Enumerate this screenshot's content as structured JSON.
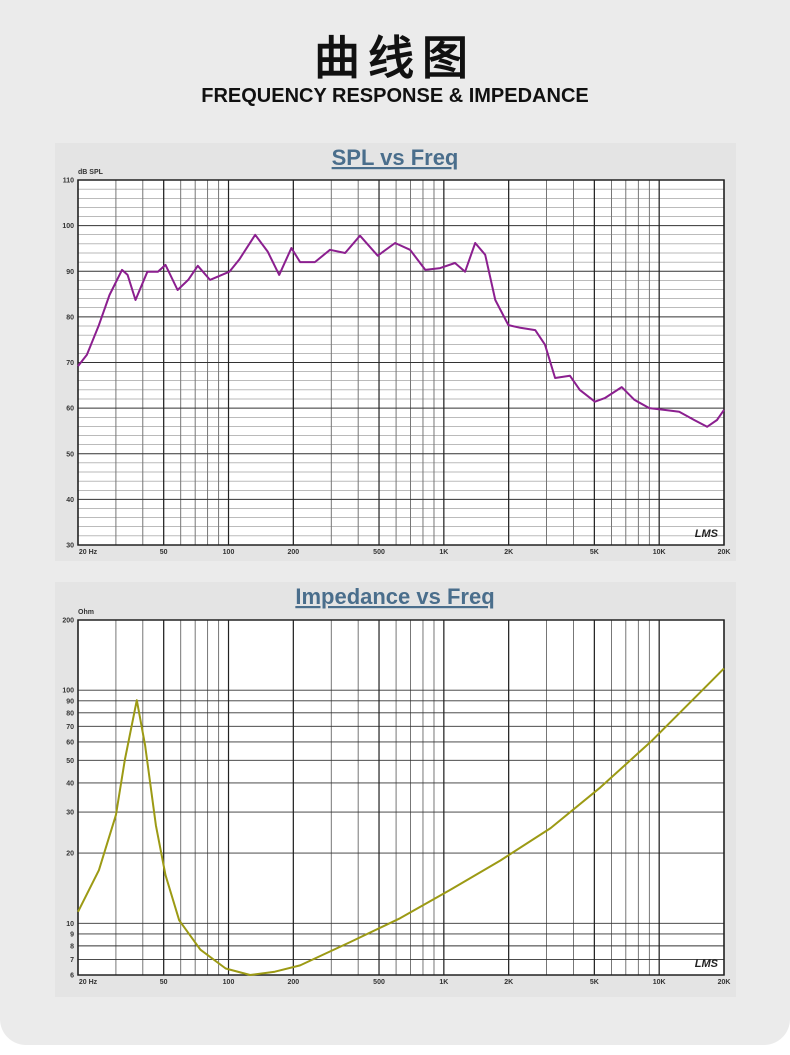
{
  "header": {
    "title": "曲线图",
    "subtitle": "FREQUENCY RESPONSE & IMPEDANCE"
  },
  "chart_data": [
    {
      "type": "line",
      "title": "SPL vs Freq",
      "y_label": "dB SPL",
      "annotation": "LMS",
      "xlog": true,
      "ylog": false,
      "grid": true,
      "minor_grid": true,
      "y_minor": 5,
      "xlim": [
        20,
        20000
      ],
      "ylim": [
        30,
        110
      ],
      "xticks": [
        {
          "value": 20,
          "label": "20 Hz"
        },
        50,
        100,
        200,
        500,
        {
          "value": 1000,
          "label": "1K"
        },
        {
          "value": 2000,
          "label": "2K"
        },
        {
          "value": 5000,
          "label": "5K"
        },
        {
          "value": 10000,
          "label": "10K"
        },
        {
          "value": 20000,
          "label": "20K"
        }
      ],
      "yticks": [
        30,
        40,
        50,
        60,
        70,
        80,
        90,
        100,
        110
      ],
      "x": [
        20,
        22,
        25,
        28,
        32,
        34,
        37,
        42,
        47,
        51,
        58,
        65,
        72,
        82,
        101,
        112,
        133,
        152,
        172,
        196,
        215,
        252,
        296,
        348,
        408,
        493,
        594,
        697,
        820,
        961,
        1127,
        1255,
        1398,
        1556,
        1733,
        1994,
        2265,
        2657,
        2950,
        3285,
        3850,
        4280,
        5030,
        5590,
        6700,
        7680,
        9000,
        10560,
        12390,
        14550,
        16700,
        18550,
        20000
      ],
      "series": [
        {
          "name": "SPL",
          "color": "#8b1f8f",
          "values": [
            69.2,
            71.7,
            78.2,
            84.8,
            90.3,
            89.2,
            83.7,
            89.9,
            89.9,
            91.4,
            85.9,
            88.1,
            91.2,
            88.1,
            89.9,
            92.5,
            98,
            94.3,
            89.2,
            95.1,
            92,
            92,
            94.7,
            94,
            97.8,
            93.4,
            96.2,
            94.7,
            90.3,
            90.7,
            91.8,
            89.9,
            96.2,
            93.6,
            83.7,
            78.2,
            77.6,
            77.1,
            73.9,
            66.6,
            67.1,
            64,
            61.4,
            62.2,
            64.6,
            61.8,
            60,
            59.6,
            59.2,
            57.4,
            55.9,
            57.4,
            59.6
          ]
        }
      ]
    },
    {
      "type": "line",
      "title": "Impedance vs Freq",
      "y_label": "Ohm",
      "annotation": "LMS",
      "xlog": true,
      "ylog": true,
      "grid": true,
      "minor_grid": true,
      "y_minor": 1,
      "xlim": [
        20,
        20000
      ],
      "ylim": [
        6,
        200
      ],
      "xticks": [
        {
          "value": 20,
          "label": "20 Hz"
        },
        50,
        100,
        200,
        500,
        {
          "value": 1000,
          "label": "1K"
        },
        {
          "value": 2000,
          "label": "2K"
        },
        {
          "value": 5000,
          "label": "5K"
        },
        {
          "value": 10000,
          "label": "10K"
        },
        {
          "value": 20000,
          "label": "20K"
        }
      ],
      "yticks": [
        6,
        7,
        8,
        9,
        10,
        20,
        30,
        40,
        50,
        60,
        70,
        80,
        90,
        100,
        200
      ],
      "x": [
        20,
        25,
        30,
        33,
        37.5,
        41,
        46,
        51,
        59,
        74,
        97,
        126,
        164,
        215,
        367,
        626,
        1070,
        1830,
        3130,
        5340,
        9120,
        15570,
        20000
      ],
      "series": [
        {
          "name": "Impedance",
          "color": "#9c9a14",
          "values": [
            11.2,
            16.9,
            29.1,
            50.1,
            90.6,
            58,
            26.3,
            16.1,
            10.3,
            7.7,
            6.4,
            6.0,
            6.2,
            6.6,
            8.3,
            10.5,
            13.9,
            18.6,
            25.6,
            38.3,
            60,
            98.3,
            124
          ]
        }
      ]
    }
  ]
}
